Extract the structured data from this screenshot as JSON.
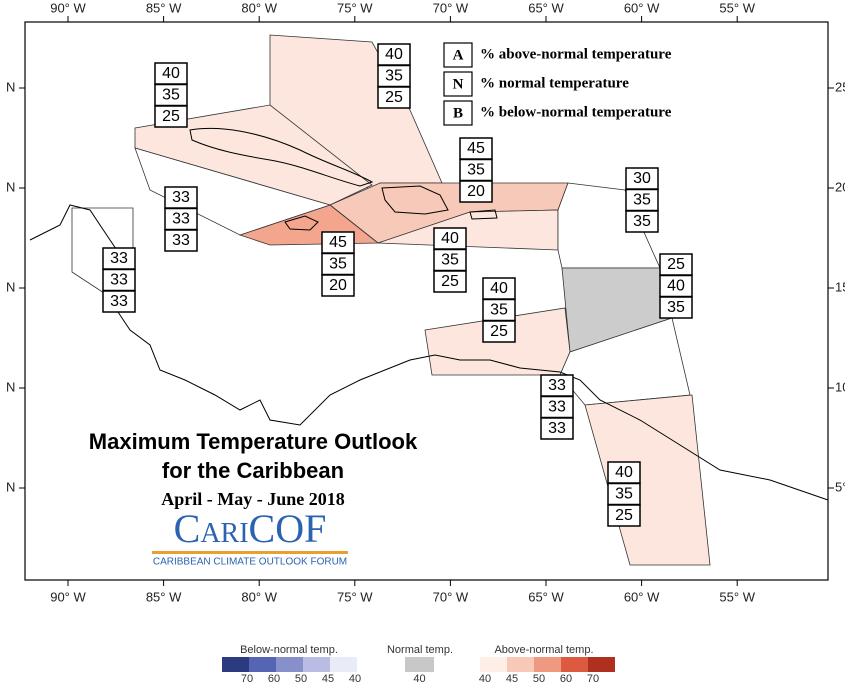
{
  "map": {
    "lon_labels": [
      "90° W",
      "85° W",
      "80° W",
      "75° W",
      "70° W",
      "65° W",
      "60° W",
      "55° W"
    ],
    "lat_labels_left": [
      "N",
      "N",
      "N",
      "N",
      "N"
    ],
    "lat_labels_right": [
      "25",
      "20",
      "15",
      "10",
      "5°"
    ],
    "legend": [
      {
        "key": "A",
        "text": "% above-normal temperature"
      },
      {
        "key": "N",
        "text": "% normal temperature"
      },
      {
        "key": "B",
        "text": "% below-normal temperature"
      }
    ],
    "title": "Maximum Temperature Outlook",
    "subtitle": "for the Caribbean",
    "period": "April - May - June 2018",
    "logo": "CariCOF",
    "logo_tagline": "CARIBBEAN CLIMATE OUTLOOK FORUM",
    "regions": [
      {
        "values": [
          40,
          35,
          25
        ],
        "color": "#fce6dd"
      },
      {
        "values": [
          40,
          35,
          25
        ],
        "color": "#fce6dd"
      },
      {
        "values": [
          45,
          35,
          20
        ],
        "color": "#f7c9b8"
      },
      {
        "values": [
          45,
          35,
          20
        ],
        "color": "#f4a58e"
      },
      {
        "values": [
          40,
          35,
          25
        ],
        "color": "#fce6dd"
      },
      {
        "values": [
          30,
          35,
          35
        ],
        "color": "#ffffff"
      },
      {
        "values": [
          25,
          40,
          35
        ],
        "color": "#cccccc"
      },
      {
        "values": [
          40,
          35,
          25
        ],
        "color": "#fce6dd"
      },
      {
        "values": [
          33,
          33,
          33
        ],
        "color": "#ffffff"
      },
      {
        "values": [
          40,
          35,
          25
        ],
        "color": "#fce6dd"
      },
      {
        "values": [
          33,
          33,
          33
        ],
        "color": "#ffffff"
      },
      {
        "values": [
          33,
          33,
          33
        ],
        "color": "#ffffff"
      }
    ],
    "colorbar": {
      "below": {
        "label": "Below-normal temp.",
        "ticks": [
          70,
          60,
          50,
          45,
          40
        ],
        "colors": [
          "#2c3a80",
          "#5565b4",
          "#8890cc",
          "#b9bde3",
          "#e9ebf7"
        ]
      },
      "normal": {
        "label": "Normal temp.",
        "ticks": [
          40
        ],
        "colors": [
          "#c8c8c8"
        ]
      },
      "above": {
        "label": "Above-normal temp.",
        "ticks": [
          40,
          45,
          50,
          60,
          70
        ],
        "colors": [
          "#fdeee8",
          "#f9c9b8",
          "#ef9a80",
          "#dc5a40",
          "#b03020"
        ]
      }
    }
  }
}
